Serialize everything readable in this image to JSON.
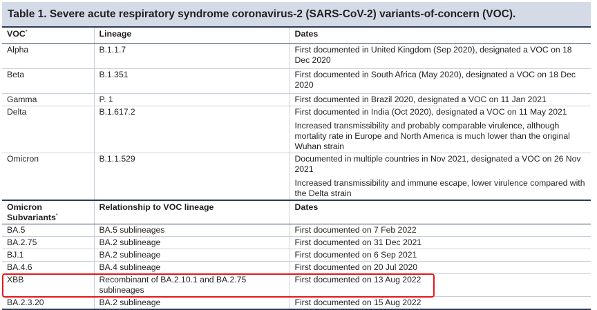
{
  "table": {
    "title": "Table 1. Severe acute respiratory syndrome coronavirus-2 (SARS-CoV-2) variants-of-concern (VOC).",
    "voc_header": {
      "col1": "VOC",
      "col1_mark": "*",
      "col2": "Lineage",
      "col3": "Dates"
    },
    "voc_rows": [
      {
        "name": "Alpha",
        "lineage": "B.1.1.7",
        "dates": "First documented in United Kingdom (Sep 2020), designated a VOC on 18 Dec 2020",
        "extra": ""
      },
      {
        "name": "Beta",
        "lineage": "B.1.351",
        "dates": "First documented in South Africa (May 2020), designated a VOC on 18 Dec 2020",
        "extra": ""
      },
      {
        "name": "Gamma",
        "lineage": "P. 1",
        "dates": "First documented in Brazil 2020, designated a VOC on 11 Jan 2021",
        "extra": ""
      },
      {
        "name": "Delta",
        "lineage": "B.1.617.2",
        "dates": "First documented in India (Oct 2020), designated a VOC on 11 May 2021",
        "extra": "Increased transmissibility and probably comparable virulence, although mortality rate in Europe and North America is much lower than the original Wuhan strain"
      },
      {
        "name": "Omicron",
        "lineage": "B.1.1.529",
        "dates": "Documented in multiple countries in Nov 2021, designated a VOC on 26 Nov 2021",
        "extra": "Increased transmissibility and immune escape, lower virulence compared with the Delta strain"
      }
    ],
    "sub_header": {
      "col1": "Omicron Subvariants",
      "col1_mark": "*",
      "col2": "Relationship to VOC lineage",
      "col3": "Dates"
    },
    "sub_rows": [
      {
        "name": "BA.5",
        "relationship": "BA.5 sublineages",
        "dates": "First documented on 7 Feb 2022"
      },
      {
        "name": "BA.2.75",
        "relationship": "BA.2 sublineage",
        "dates": "First documented on 31 Dec 2021"
      },
      {
        "name": "BJ.1",
        "relationship": "BA.2 sublineage",
        "dates": "First documented on 6 Sep 2021"
      },
      {
        "name": "BA.4.6",
        "relationship": "BA.4 sublineage",
        "dates": "First documented on 20 Jul 2020"
      },
      {
        "name": "XBB",
        "relationship": "Recombinant of BA.2.10.1 and BA.2.75 sublineages",
        "dates": "First documented on 13 Aug 2022"
      },
      {
        "name": "BA.2.3.20",
        "relationship": "BA.2 sublineage",
        "dates": "First documented on 15 Aug 2022"
      }
    ],
    "highlight_color": "#e8141b",
    "title_bg": "#d4dbe7"
  }
}
